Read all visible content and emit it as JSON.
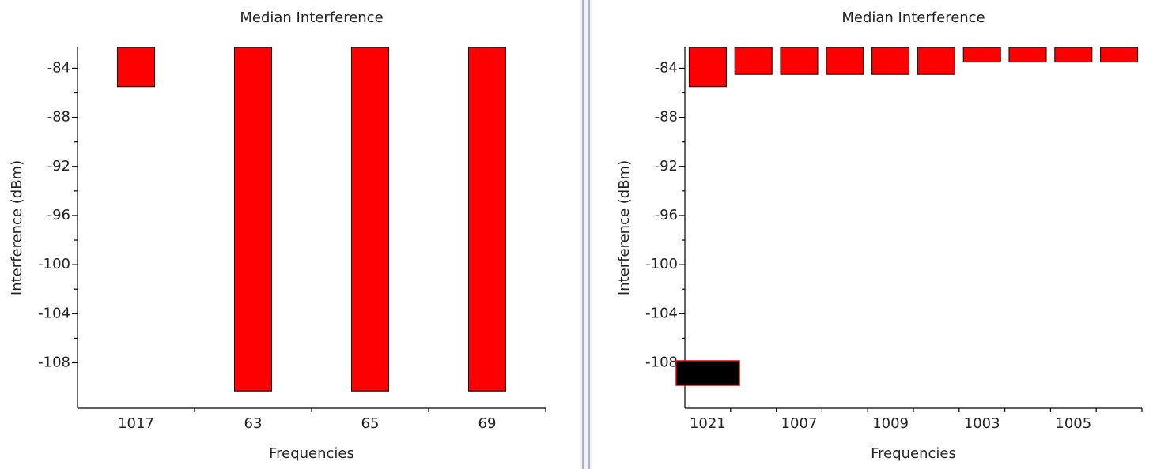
{
  "chart_data": [
    {
      "type": "bar",
      "title": "Median Interference",
      "xlabel": "Frequencies",
      "ylabel": "Interference (dBm)",
      "categories": [
        "1017",
        "63",
        "65",
        "69"
      ],
      "values": [
        -85.5,
        -110.3,
        -110.3,
        -110.3
      ],
      "color": "#ff0000",
      "ylim": [
        -111.7,
        -82.3
      ],
      "yticks": [
        -84,
        -88,
        -92,
        -96,
        -100,
        -104,
        -108
      ]
    },
    {
      "type": "bar",
      "title": "Median Interference",
      "xlabel": "Frequencies",
      "ylabel": "Interference (dBm)",
      "categories": [
        "1021",
        null,
        "1007",
        null,
        "1009",
        null,
        "1003",
        null,
        "1005",
        null
      ],
      "values": [
        -85.5,
        -84.5,
        -84.5,
        -84.5,
        -84.5,
        -84.5,
        -83.5,
        -83.5,
        -83.5,
        -83.5
      ],
      "color": "#ff0000",
      "ylim": [
        -111.7,
        -82.3
      ],
      "yticks": [
        -84,
        -88,
        -92,
        -96,
        -100,
        -104,
        -108
      ]
    }
  ]
}
